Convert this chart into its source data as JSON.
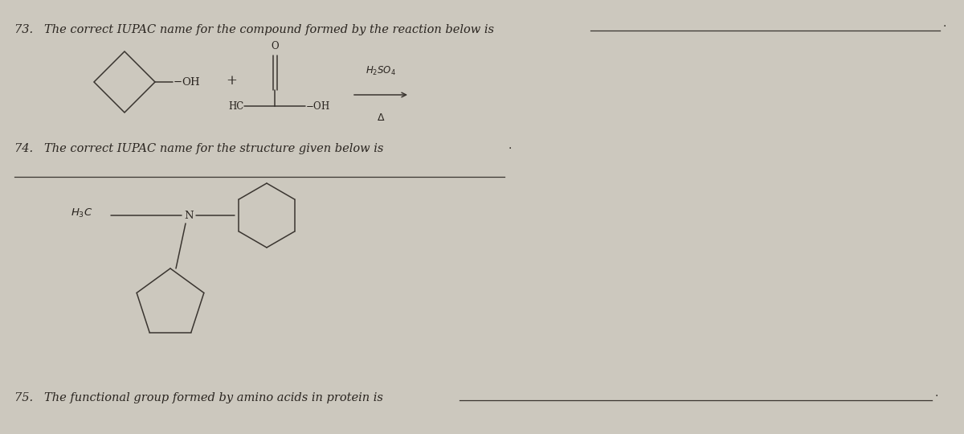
{
  "bg_color": "#ccc8be",
  "text_color": "#2a2520",
  "line_color": "#3a3530",
  "q73_text": "73.   The correct IUPAC name for the compound formed by the reaction below is",
  "q74_text": "74.   The correct IUPAC name for the structure given below is",
  "q75_text": "75.   The functional group formed by amino acids in protein is",
  "figsize": [
    12.0,
    5.4
  ],
  "dpi": 100,
  "xlim": [
    0,
    12
  ],
  "ylim": [
    0,
    5.4
  ]
}
